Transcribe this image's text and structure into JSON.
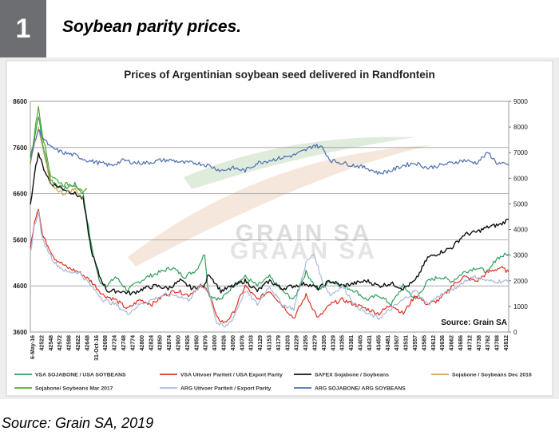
{
  "header": {
    "number": "1",
    "title": "Soybean parity prices."
  },
  "footer": {
    "source": "Source: Grain SA, 2019"
  },
  "chart_data": {
    "type": "line",
    "title": "Prices of Argentinian soybean seed delivered in Randfontein",
    "source_label": "Source: Grain SA",
    "watermark": [
      "GRAIN SA",
      "GRAAN SA"
    ],
    "grid": true,
    "legend_position": "bottom",
    "y_left": {
      "min": 3600,
      "max": 8600,
      "ticks": [
        "3600",
        "4600",
        "5600",
        "6600",
        "7600",
        "8600"
      ]
    },
    "y_right": {
      "min": 0,
      "max": 9000,
      "ticks": [
        "0",
        "1000",
        "2000",
        "3000",
        "4000",
        "5000",
        "6000",
        "7000",
        "8000",
        "9000"
      ]
    },
    "x_ticks": [
      "6-May-16",
      "42522",
      "42548",
      "42572",
      "42598",
      "42622",
      "42648",
      "31-Oct-16",
      "42698",
      "42724",
      "42748",
      "42774",
      "42800",
      "42824",
      "42850",
      "42874",
      "42900",
      "42926",
      "42950",
      "42976",
      "43000",
      "43026",
      "43050",
      "43076",
      "43103",
      "43129",
      "43153",
      "43179",
      "43203",
      "43229",
      "43255",
      "43279",
      "43305",
      "43329",
      "43355",
      "43381",
      "43405",
      "43431",
      "43455",
      "43481",
      "43507",
      "43531",
      "43557",
      "43585",
      "43612",
      "43636",
      "43662",
      "43686",
      "43712",
      "43738",
      "43762",
      "43788",
      "43812"
    ],
    "series": [
      {
        "name": "VSA SOJABONE / USA SOYBEANS",
        "axis": "left",
        "color": "#2e9e5b",
        "values": [
          [
            0,
            7400
          ],
          [
            2,
            7800
          ],
          [
            4,
            8300
          ],
          [
            6,
            7700
          ],
          [
            10,
            6900
          ],
          [
            16,
            6700
          ],
          [
            22,
            6800
          ],
          [
            26,
            6600
          ],
          [
            30,
            5500
          ],
          [
            34,
            4700
          ],
          [
            38,
            4600
          ],
          [
            42,
            4800
          ],
          [
            48,
            4500
          ],
          [
            52,
            4650
          ],
          [
            58,
            4800
          ],
          [
            64,
            4900
          ],
          [
            70,
            5000
          ],
          [
            76,
            4800
          ],
          [
            82,
            4950
          ],
          [
            86,
            5300
          ],
          [
            88,
            4400
          ],
          [
            94,
            4300
          ],
          [
            100,
            4600
          ],
          [
            106,
            4800
          ],
          [
            112,
            4600
          ],
          [
            118,
            4800
          ],
          [
            124,
            4500
          ],
          [
            130,
            4300
          ],
          [
            136,
            4900
          ],
          [
            142,
            4500
          ],
          [
            148,
            4700
          ],
          [
            154,
            4600
          ],
          [
            160,
            4500
          ],
          [
            166,
            4300
          ],
          [
            172,
            4400
          ],
          [
            178,
            4200
          ],
          [
            184,
            4600
          ],
          [
            190,
            4300
          ],
          [
            196,
            4700
          ],
          [
            202,
            4800
          ],
          [
            208,
            4700
          ],
          [
            214,
            4900
          ],
          [
            220,
            5000
          ],
          [
            226,
            4900
          ],
          [
            230,
            5200
          ],
          [
            236,
            5300
          ]
        ]
      },
      {
        "name": "VSA Uitvoer Pariteit / USA Export Parity",
        "axis": "left",
        "color": "#e2301f",
        "values": [
          [
            0,
            5400
          ],
          [
            2,
            6000
          ],
          [
            4,
            6300
          ],
          [
            6,
            5700
          ],
          [
            12,
            5200
          ],
          [
            18,
            5000
          ],
          [
            24,
            4900
          ],
          [
            30,
            4700
          ],
          [
            36,
            4400
          ],
          [
            42,
            4300
          ],
          [
            48,
            4100
          ],
          [
            54,
            4300
          ],
          [
            60,
            4200
          ],
          [
            66,
            4400
          ],
          [
            72,
            4500
          ],
          [
            78,
            4400
          ],
          [
            84,
            4600
          ],
          [
            88,
            4500
          ],
          [
            92,
            3900
          ],
          [
            96,
            3800
          ],
          [
            100,
            4000
          ],
          [
            106,
            4600
          ],
          [
            112,
            4300
          ],
          [
            118,
            4500
          ],
          [
            124,
            4200
          ],
          [
            130,
            3900
          ],
          [
            136,
            4400
          ],
          [
            142,
            3900
          ],
          [
            148,
            4200
          ],
          [
            154,
            4300
          ],
          [
            160,
            4200
          ],
          [
            166,
            4100
          ],
          [
            172,
            4000
          ],
          [
            178,
            4200
          ],
          [
            184,
            4000
          ],
          [
            190,
            4400
          ],
          [
            196,
            4200
          ],
          [
            202,
            4300
          ],
          [
            208,
            4600
          ],
          [
            214,
            4800
          ],
          [
            220,
            4700
          ],
          [
            226,
            4900
          ],
          [
            232,
            5000
          ],
          [
            236,
            4900
          ]
        ]
      },
      {
        "name": "SAFEX Sojabone / Soybeans",
        "axis": "right",
        "color": "#111111",
        "values": [
          [
            0,
            4900
          ],
          [
            2,
            6200
          ],
          [
            4,
            7000
          ],
          [
            6,
            6500
          ],
          [
            10,
            5800
          ],
          [
            16,
            5600
          ],
          [
            22,
            5400
          ],
          [
            26,
            5200
          ],
          [
            30,
            3200
          ],
          [
            34,
            2200
          ],
          [
            38,
            1600
          ],
          [
            44,
            1600
          ],
          [
            50,
            1500
          ],
          [
            56,
            1700
          ],
          [
            62,
            1800
          ],
          [
            68,
            1700
          ],
          [
            74,
            2000
          ],
          [
            80,
            1700
          ],
          [
            86,
            1800
          ],
          [
            88,
            2300
          ],
          [
            94,
            1600
          ],
          [
            100,
            1800
          ],
          [
            106,
            2000
          ],
          [
            112,
            1600
          ],
          [
            118,
            2000
          ],
          [
            124,
            1700
          ],
          [
            130,
            1800
          ],
          [
            136,
            1900
          ],
          [
            142,
            1700
          ],
          [
            148,
            2000
          ],
          [
            154,
            1800
          ],
          [
            160,
            1900
          ],
          [
            166,
            2000
          ],
          [
            172,
            1800
          ],
          [
            178,
            1900
          ],
          [
            184,
            1700
          ],
          [
            190,
            2000
          ],
          [
            196,
            2900
          ],
          [
            202,
            3100
          ],
          [
            208,
            3300
          ],
          [
            214,
            3800
          ],
          [
            220,
            3900
          ],
          [
            226,
            4100
          ],
          [
            232,
            4200
          ],
          [
            236,
            4400
          ]
        ]
      },
      {
        "name": "Sojabone / Soybeans Dec 2016",
        "axis": "left",
        "color": "#c8a850",
        "values": [
          [
            0,
            7300
          ],
          [
            2,
            7700
          ],
          [
            4,
            8000
          ],
          [
            6,
            7600
          ],
          [
            10,
            6800
          ],
          [
            16,
            6600
          ],
          [
            22,
            6700
          ],
          [
            26,
            6500
          ]
        ]
      },
      {
        "name": "Sojabone/ Soybeans Mar 2017",
        "axis": "left",
        "color": "#57a832",
        "values": [
          [
            0,
            7200
          ],
          [
            2,
            7900
          ],
          [
            4,
            8500
          ],
          [
            6,
            7900
          ],
          [
            10,
            7000
          ],
          [
            16,
            6800
          ],
          [
            22,
            6800
          ],
          [
            26,
            6600
          ],
          [
            28,
            6700
          ]
        ]
      },
      {
        "name": "ARG Uitvoer Pariteit / Export Parity",
        "axis": "left",
        "color": "#a9b8da",
        "values": [
          [
            0,
            5300
          ],
          [
            2,
            5900
          ],
          [
            4,
            6200
          ],
          [
            6,
            5600
          ],
          [
            12,
            5100
          ],
          [
            18,
            4900
          ],
          [
            24,
            4900
          ],
          [
            30,
            4600
          ],
          [
            36,
            4300
          ],
          [
            42,
            4200
          ],
          [
            48,
            4000
          ],
          [
            54,
            4200
          ],
          [
            60,
            4300
          ],
          [
            66,
            4400
          ],
          [
            72,
            4400
          ],
          [
            78,
            4300
          ],
          [
            84,
            4600
          ],
          [
            88,
            4500
          ],
          [
            92,
            3800
          ],
          [
            96,
            3700
          ],
          [
            100,
            3900
          ],
          [
            106,
            4500
          ],
          [
            112,
            4200
          ],
          [
            118,
            4600
          ],
          [
            124,
            4200
          ],
          [
            130,
            4100
          ],
          [
            136,
            5100
          ],
          [
            140,
            5300
          ],
          [
            144,
            4700
          ],
          [
            148,
            4400
          ],
          [
            154,
            4600
          ],
          [
            160,
            4200
          ],
          [
            166,
            4000
          ],
          [
            172,
            3900
          ],
          [
            178,
            4100
          ],
          [
            184,
            4300
          ],
          [
            190,
            4500
          ],
          [
            196,
            4200
          ],
          [
            202,
            4400
          ],
          [
            208,
            4500
          ],
          [
            214,
            4700
          ],
          [
            220,
            4800
          ],
          [
            226,
            4700
          ],
          [
            232,
            4700
          ],
          [
            236,
            4700
          ]
        ]
      },
      {
        "name": "ARG SOJABONE/ ARG SOYBEANS",
        "axis": "right",
        "color": "#4a6fb3",
        "values": [
          [
            0,
            6800
          ],
          [
            2,
            7400
          ],
          [
            4,
            7900
          ],
          [
            6,
            7600
          ],
          [
            10,
            7200
          ],
          [
            16,
            7000
          ],
          [
            22,
            6900
          ],
          [
            28,
            6700
          ],
          [
            34,
            6600
          ],
          [
            40,
            6500
          ],
          [
            46,
            6700
          ],
          [
            52,
            6600
          ],
          [
            58,
            6600
          ],
          [
            64,
            6700
          ],
          [
            70,
            6700
          ],
          [
            76,
            6600
          ],
          [
            82,
            6600
          ],
          [
            88,
            6500
          ],
          [
            94,
            6300
          ],
          [
            100,
            6400
          ],
          [
            106,
            6300
          ],
          [
            112,
            6600
          ],
          [
            118,
            6700
          ],
          [
            124,
            6800
          ],
          [
            130,
            6900
          ],
          [
            136,
            7100
          ],
          [
            140,
            7300
          ],
          [
            144,
            7200
          ],
          [
            148,
            6700
          ],
          [
            154,
            6600
          ],
          [
            160,
            6500
          ],
          [
            166,
            6400
          ],
          [
            172,
            6200
          ],
          [
            178,
            6300
          ],
          [
            184,
            6500
          ],
          [
            190,
            6600
          ],
          [
            196,
            6400
          ],
          [
            202,
            6500
          ],
          [
            208,
            6600
          ],
          [
            214,
            6700
          ],
          [
            220,
            6600
          ],
          [
            226,
            7000
          ],
          [
            230,
            6600
          ],
          [
            236,
            6500
          ]
        ]
      }
    ]
  }
}
